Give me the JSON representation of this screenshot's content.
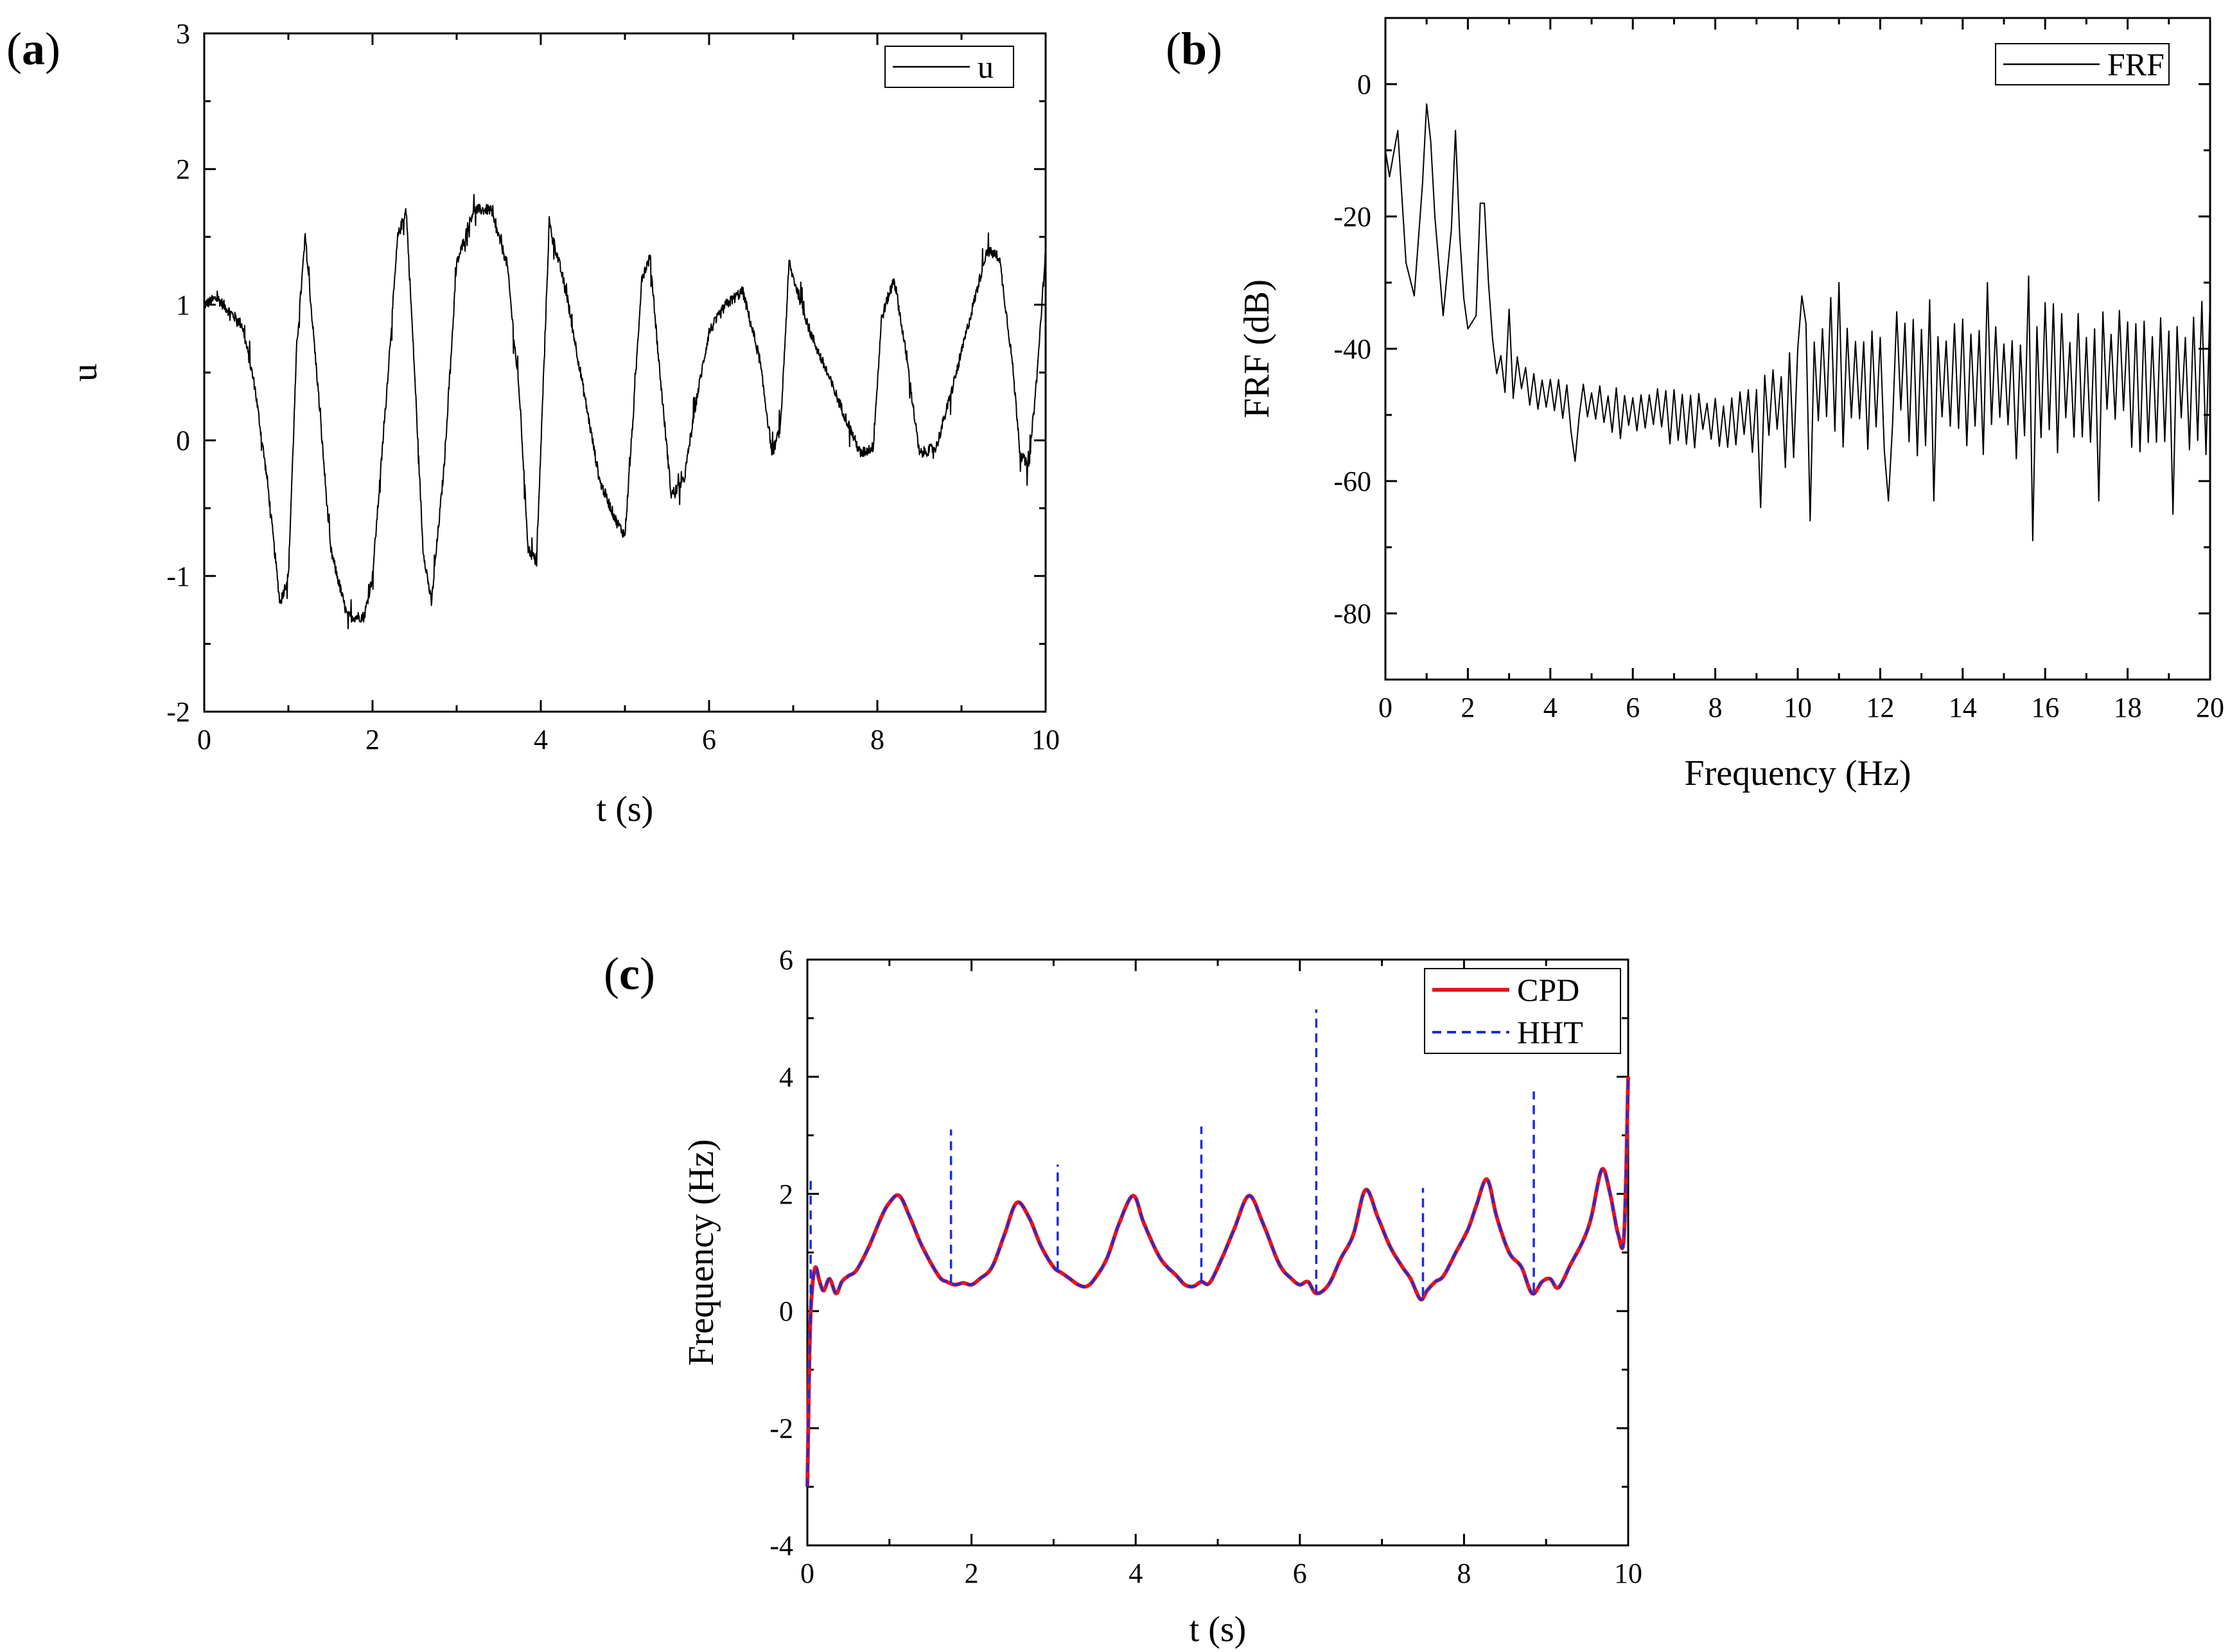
{
  "figure": {
    "panels": [
      {
        "label_open": "(",
        "letter": "a",
        "label_close": ")"
      },
      {
        "label_open": "(",
        "letter": "b",
        "label_close": ")"
      },
      {
        "label_open": "(",
        "letter": "c",
        "label_close": ")"
      }
    ]
  },
  "chart_data": [
    {
      "id": "a",
      "type": "line",
      "title": "",
      "xlabel": "t (s)",
      "ylabel": "u",
      "xlim": [
        0,
        10
      ],
      "ylim": [
        -2,
        3
      ],
      "xticks": [
        0,
        2,
        4,
        6,
        8,
        10
      ],
      "yticks": [
        -2,
        -1,
        0,
        1,
        2,
        3
      ],
      "legend": {
        "position": "top-right",
        "entries": [
          "u"
        ]
      },
      "series": [
        {
          "name": "u",
          "color": "#000000",
          "style": "solid",
          "noise": 0.04,
          "x": [
            0,
            0.15,
            0.3,
            0.45,
            0.6,
            0.75,
            0.9,
            1.0,
            1.1,
            1.2,
            1.35,
            1.5,
            1.7,
            1.9,
            2.0,
            2.15,
            2.3,
            2.4,
            2.5,
            2.6,
            2.7,
            2.85,
            3.0,
            3.2,
            3.4,
            3.6,
            3.75,
            3.85,
            3.95,
            4.1,
            4.3,
            4.5,
            4.7,
            4.9,
            5.0,
            5.1,
            5.2,
            5.3,
            5.4,
            5.55,
            5.7,
            5.85,
            6.0,
            6.2,
            6.4,
            6.6,
            6.75,
            6.85,
            6.95,
            7.05,
            7.2,
            7.4,
            7.6,
            7.8,
            7.95,
            8.05,
            8.2,
            8.35,
            8.5,
            8.7,
            8.9,
            9.1,
            9.3,
            9.45,
            9.6,
            9.7,
            9.8,
            9.9,
            10.0
          ],
          "values": [
            1.0,
            1.05,
            0.95,
            0.85,
            0.4,
            -0.3,
            -1.2,
            -1.0,
            0.7,
            1.5,
            0.4,
            -0.8,
            -1.3,
            -1.3,
            -1.0,
            0.2,
            1.5,
            1.7,
            0.5,
            -0.8,
            -1.2,
            -0.2,
            1.3,
            1.7,
            1.7,
            1.3,
            0.3,
            -0.8,
            -0.9,
            1.6,
            1.1,
            0.4,
            -0.3,
            -0.6,
            -0.7,
            0.2,
            1.2,
            1.35,
            0.6,
            -0.4,
            -0.3,
            0.3,
            0.8,
            1.0,
            1.1,
            0.6,
            -0.1,
            0.1,
            1.3,
            1.1,
            0.8,
            0.5,
            0.2,
            -0.1,
            -0.05,
            0.9,
            1.2,
            0.6,
            -0.1,
            -0.05,
            0.4,
            0.9,
            1.4,
            1.35,
            0.6,
            -0.1,
            -0.2,
            0.5,
            1.4
          ]
        }
      ]
    },
    {
      "id": "b",
      "type": "line",
      "title": "",
      "xlabel": "Frequency (Hz)",
      "ylabel": "FRF (dB)",
      "xlim": [
        0,
        20
      ],
      "ylim": [
        -90,
        10
      ],
      "xticks": [
        0,
        2,
        4,
        6,
        8,
        10,
        12,
        14,
        16,
        18,
        20
      ],
      "yticks": [
        -80,
        -60,
        -40,
        -20,
        0
      ],
      "legend": {
        "position": "top-right",
        "entries": [
          "FRF"
        ]
      },
      "series": [
        {
          "name": "FRF",
          "color": "#000000",
          "style": "solid",
          "step": 0.1,
          "x_breaks": [
            0,
            0.1,
            0.3,
            0.5,
            0.7,
            0.9,
            1.05,
            1.2,
            1.4,
            1.6,
            1.7,
            1.85,
            2.0,
            2.2,
            2.4,
            2.5,
            2.6,
            2.8,
            3.0,
            3.2,
            3.5,
            4.0,
            5.0,
            6.0,
            7.0,
            8.0,
            8.8,
            9.0,
            9.4,
            9.8,
            10.2,
            11.0,
            12.0,
            14.0,
            16.0,
            18.0,
            20.0
          ],
          "level": [
            -10,
            -14,
            -7,
            -27,
            -32,
            -15,
            -3,
            -20,
            -35,
            -22,
            -8,
            -30,
            -37,
            -35,
            -18,
            -30,
            -40,
            -43,
            -45,
            -43,
            -46,
            -47,
            -48,
            -49,
            -49,
            -50,
            -50,
            -48,
            -48,
            -48,
            -44,
            -44,
            -44,
            -45,
            -45,
            -44,
            -44
          ],
          "ripple_lo": [
            0,
            0,
            0,
            0,
            0,
            0,
            0,
            0,
            0,
            0,
            0,
            0,
            0,
            0,
            0,
            0,
            2,
            3,
            4,
            5,
            5,
            5,
            5,
            5,
            6,
            6,
            6,
            8,
            10,
            10,
            12,
            12,
            12,
            12,
            12,
            12,
            12
          ],
          "ripple_hi": [
            0,
            0,
            0,
            0,
            0,
            0,
            0,
            0,
            0,
            0,
            0,
            0,
            0,
            0,
            0,
            0,
            2,
            3,
            3,
            3,
            3,
            3,
            3,
            3,
            3,
            3,
            4,
            4,
            5,
            10,
            12,
            12,
            12,
            12,
            12,
            12,
            12
          ],
          "peaks": [
            [
              0.3,
              -7
            ],
            [
              1.0,
              -3
            ],
            [
              1.7,
              -7
            ],
            [
              2.35,
              -18
            ],
            [
              3.05,
              -34
            ],
            [
              10.1,
              -32
            ],
            [
              11.0,
              -30
            ],
            [
              14.6,
              -30
            ],
            [
              15.6,
              -29
            ]
          ],
          "dips": [
            [
              4.6,
              -57
            ],
            [
              9.1,
              -64
            ],
            [
              10.3,
              -66
            ],
            [
              12.2,
              -63
            ],
            [
              13.3,
              -63
            ],
            [
              15.7,
              -69
            ],
            [
              17.3,
              -63
            ],
            [
              19.1,
              -65
            ]
          ]
        }
      ]
    },
    {
      "id": "c",
      "type": "line",
      "title": "",
      "xlabel": "t (s)",
      "ylabel": "Frequency (Hz)",
      "xlim": [
        0,
        10
      ],
      "ylim": [
        -4,
        6
      ],
      "xticks": [
        0,
        2,
        4,
        6,
        8,
        10
      ],
      "yticks": [
        -4,
        -2,
        0,
        2,
        4,
        6
      ],
      "legend": {
        "position": "top-right",
        "entries": [
          "CPD",
          "HHT"
        ]
      },
      "series": [
        {
          "name": "CPD",
          "color": "#e8141a",
          "style": "solid",
          "x": [
            0.0,
            0.03,
            0.06,
            0.1,
            0.15,
            0.2,
            0.27,
            0.35,
            0.42,
            0.5,
            0.6,
            0.75,
            0.9,
            1.0,
            1.12,
            1.25,
            1.4,
            1.6,
            1.7,
            1.8,
            1.9,
            2.0,
            2.1,
            2.25,
            2.4,
            2.55,
            2.7,
            2.85,
            3.0,
            3.1,
            3.2,
            3.3,
            3.4,
            3.5,
            3.65,
            3.8,
            3.97,
            4.1,
            4.3,
            4.5,
            4.6,
            4.7,
            4.8,
            4.9,
            5.05,
            5.2,
            5.38,
            5.55,
            5.75,
            5.9,
            6.0,
            6.1,
            6.2,
            6.35,
            6.5,
            6.65,
            6.8,
            6.95,
            7.1,
            7.25,
            7.35,
            7.47,
            7.55,
            7.65,
            7.75,
            7.9,
            8.05,
            8.15,
            8.28,
            8.4,
            8.55,
            8.7,
            8.83,
            8.95,
            9.05,
            9.15,
            9.3,
            9.45,
            9.55,
            9.68,
            9.78,
            9.88,
            9.95,
            10.0
          ],
          "values": [
            -3.0,
            -0.5,
            0.4,
            0.75,
            0.5,
            0.35,
            0.55,
            0.3,
            0.5,
            0.6,
            0.7,
            1.1,
            1.6,
            1.85,
            1.97,
            1.6,
            1.1,
            0.6,
            0.5,
            0.45,
            0.48,
            0.45,
            0.55,
            0.75,
            1.3,
            1.85,
            1.6,
            1.1,
            0.75,
            0.65,
            0.55,
            0.45,
            0.42,
            0.55,
            0.9,
            1.5,
            1.97,
            1.5,
            0.9,
            0.6,
            0.45,
            0.42,
            0.5,
            0.48,
            0.9,
            1.4,
            1.97,
            1.5,
            0.8,
            0.55,
            0.45,
            0.5,
            0.3,
            0.45,
            0.9,
            1.3,
            2.07,
            1.6,
            1.1,
            0.75,
            0.55,
            0.2,
            0.35,
            0.5,
            0.6,
            1.0,
            1.4,
            1.8,
            2.25,
            1.6,
            1.0,
            0.75,
            0.3,
            0.5,
            0.55,
            0.4,
            0.8,
            1.2,
            1.6,
            2.42,
            2.0,
            1.3,
            1.3,
            4.0
          ]
        },
        {
          "name": "HHT",
          "color": "#1f2bd8",
          "style": "dashed",
          "follows": "CPD",
          "spikes": [
            [
              0.04,
              2.3
            ],
            [
              1.75,
              3.1
            ],
            [
              3.05,
              2.5
            ],
            [
              4.8,
              3.15
            ],
            [
              6.2,
              5.15
            ],
            [
              7.5,
              2.1
            ],
            [
              8.85,
              3.75
            ]
          ]
        }
      ]
    }
  ]
}
